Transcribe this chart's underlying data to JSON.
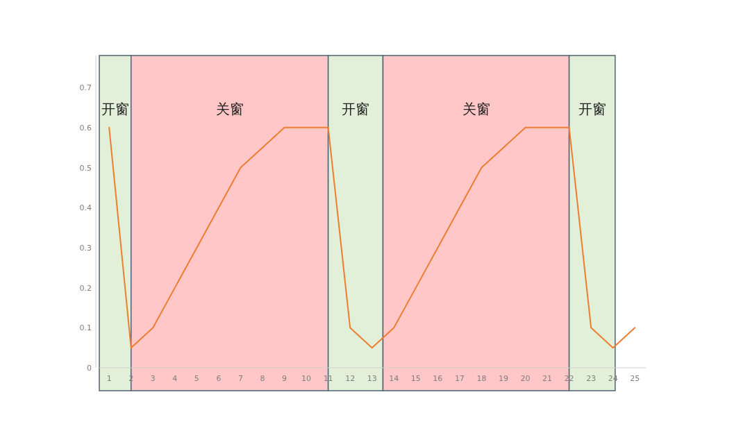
{
  "chart_data": {
    "type": "line",
    "x": [
      1,
      2,
      3,
      4,
      5,
      6,
      7,
      8,
      9,
      10,
      11,
      12,
      13,
      14,
      15,
      16,
      17,
      18,
      19,
      20,
      21,
      22,
      23,
      24,
      25
    ],
    "values": [
      0.6,
      0.05,
      0.1,
      0.2,
      0.3,
      0.4,
      0.5,
      0.55,
      0.6,
      0.6,
      0.6,
      0.1,
      0.05,
      0.1,
      0.2,
      0.3,
      0.4,
      0.5,
      0.55,
      0.6,
      0.6,
      0.6,
      0.1,
      0.05,
      0.1
    ],
    "color": "#ed7d31",
    "xlim": [
      0.55,
      25.5
    ],
    "ylim": [
      0,
      0.78
    ],
    "xticks": [
      1,
      2,
      3,
      4,
      5,
      6,
      7,
      8,
      9,
      10,
      11,
      12,
      13,
      14,
      15,
      16,
      17,
      18,
      19,
      20,
      21,
      22,
      23,
      24,
      25
    ],
    "yticks": [
      0,
      0.1,
      0.2,
      0.3,
      0.4,
      0.5,
      0.6,
      0.7
    ],
    "bands": [
      {
        "axis": "x",
        "from": 0.55,
        "to": 2,
        "label": "开窗",
        "color": "#e2f0d9"
      },
      {
        "axis": "x",
        "from": 2,
        "to": 11,
        "label": "关窗",
        "color": "#ffc7c7"
      },
      {
        "axis": "x",
        "from": 11,
        "to": 13.5,
        "label": "开窗",
        "color": "#e2f0d9"
      },
      {
        "axis": "x",
        "from": 13.5,
        "to": 22,
        "label": "关窗",
        "color": "#ffc7c7"
      },
      {
        "axis": "x",
        "from": 22,
        "to": 24.1,
        "label": "开窗",
        "color": "#e2f0d9"
      }
    ]
  }
}
